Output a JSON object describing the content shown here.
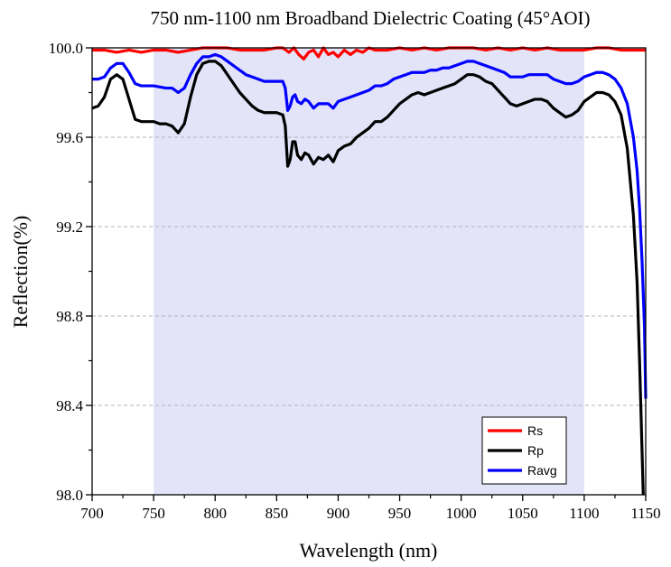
{
  "chart_data": {
    "type": "line",
    "title": "750 nm-1100 nm Broadband Dielectric Coating (45°AOI)",
    "xlabel": "Wavelength (nm)",
    "ylabel": "Reflection(%)",
    "xlim": [
      700,
      1150
    ],
    "ylim": [
      98.0,
      100.0
    ],
    "xticks": [
      "700",
      "750",
      "800",
      "850",
      "900",
      "950",
      "1000",
      "1050",
      "1100",
      "1150"
    ],
    "yticks": [
      "98.0",
      "98.4",
      "98.8",
      "99.2",
      "99.6",
      "100.0"
    ],
    "grid": "horizontal dashed",
    "legend_position": "bottom-right",
    "highlight_band": {
      "x_start": 750,
      "x_end": 1100,
      "color": "#e3e4f8"
    },
    "series": [
      {
        "name": "Rs",
        "color": "#ff0000",
        "points": [
          [
            700,
            99.99
          ],
          [
            710,
            99.99
          ],
          [
            720,
            99.98
          ],
          [
            730,
            99.99
          ],
          [
            740,
            99.98
          ],
          [
            750,
            99.99
          ],
          [
            760,
            99.99
          ],
          [
            770,
            99.98
          ],
          [
            780,
            99.99
          ],
          [
            790,
            100.0
          ],
          [
            800,
            100.0
          ],
          [
            810,
            100.0
          ],
          [
            820,
            99.99
          ],
          [
            830,
            99.99
          ],
          [
            840,
            99.99
          ],
          [
            850,
            100.0
          ],
          [
            855,
            100.0
          ],
          [
            860,
            99.98
          ],
          [
            864,
            100.0
          ],
          [
            868,
            99.97
          ],
          [
            872,
            99.95
          ],
          [
            876,
            99.98
          ],
          [
            880,
            99.99
          ],
          [
            884,
            99.96
          ],
          [
            888,
            100.0
          ],
          [
            892,
            99.97
          ],
          [
            896,
            99.98
          ],
          [
            900,
            99.96
          ],
          [
            905,
            99.99
          ],
          [
            910,
            99.97
          ],
          [
            915,
            99.99
          ],
          [
            920,
            99.98
          ],
          [
            925,
            100.0
          ],
          [
            930,
            99.99
          ],
          [
            940,
            99.99
          ],
          [
            950,
            100.0
          ],
          [
            960,
            99.99
          ],
          [
            970,
            100.0
          ],
          [
            980,
            99.99
          ],
          [
            990,
            100.0
          ],
          [
            1000,
            100.0
          ],
          [
            1010,
            100.0
          ],
          [
            1020,
            99.99
          ],
          [
            1030,
            100.0
          ],
          [
            1040,
            99.99
          ],
          [
            1050,
            100.0
          ],
          [
            1060,
            99.99
          ],
          [
            1070,
            100.0
          ],
          [
            1080,
            99.99
          ],
          [
            1090,
            99.99
          ],
          [
            1100,
            99.99
          ],
          [
            1110,
            100.0
          ],
          [
            1120,
            100.0
          ],
          [
            1130,
            99.99
          ],
          [
            1140,
            99.99
          ],
          [
            1150,
            99.99
          ]
        ]
      },
      {
        "name": "Rp",
        "color": "#000000",
        "points": [
          [
            700,
            99.73
          ],
          [
            705,
            99.74
          ],
          [
            710,
            99.78
          ],
          [
            715,
            99.86
          ],
          [
            720,
            99.88
          ],
          [
            725,
            99.86
          ],
          [
            730,
            99.77
          ],
          [
            735,
            99.68
          ],
          [
            740,
            99.67
          ],
          [
            750,
            99.67
          ],
          [
            755,
            99.66
          ],
          [
            760,
            99.66
          ],
          [
            765,
            99.65
          ],
          [
            770,
            99.62
          ],
          [
            775,
            99.66
          ],
          [
            780,
            99.78
          ],
          [
            785,
            99.88
          ],
          [
            790,
            99.93
          ],
          [
            795,
            99.94
          ],
          [
            800,
            99.94
          ],
          [
            805,
            99.92
          ],
          [
            810,
            99.88
          ],
          [
            815,
            99.84
          ],
          [
            820,
            99.8
          ],
          [
            825,
            99.77
          ],
          [
            830,
            99.74
          ],
          [
            835,
            99.72
          ],
          [
            840,
            99.71
          ],
          [
            850,
            99.71
          ],
          [
            855,
            99.7
          ],
          [
            857,
            99.65
          ],
          [
            859,
            99.47
          ],
          [
            861,
            99.5
          ],
          [
            863,
            99.58
          ],
          [
            865,
            99.58
          ],
          [
            867,
            99.52
          ],
          [
            870,
            99.5
          ],
          [
            873,
            99.53
          ],
          [
            876,
            99.52
          ],
          [
            880,
            99.48
          ],
          [
            884,
            99.51
          ],
          [
            888,
            99.5
          ],
          [
            892,
            99.52
          ],
          [
            896,
            99.49
          ],
          [
            900,
            99.54
          ],
          [
            905,
            99.56
          ],
          [
            910,
            99.57
          ],
          [
            915,
            99.6
          ],
          [
            920,
            99.62
          ],
          [
            925,
            99.64
          ],
          [
            930,
            99.67
          ],
          [
            935,
            99.67
          ],
          [
            940,
            99.69
          ],
          [
            945,
            99.72
          ],
          [
            950,
            99.75
          ],
          [
            955,
            99.77
          ],
          [
            960,
            99.79
          ],
          [
            965,
            99.8
          ],
          [
            970,
            99.79
          ],
          [
            975,
            99.8
          ],
          [
            980,
            99.81
          ],
          [
            985,
            99.82
          ],
          [
            990,
            99.83
          ],
          [
            995,
            99.84
          ],
          [
            1000,
            99.86
          ],
          [
            1005,
            99.88
          ],
          [
            1010,
            99.88
          ],
          [
            1015,
            99.87
          ],
          [
            1020,
            99.85
          ],
          [
            1025,
            99.84
          ],
          [
            1030,
            99.81
          ],
          [
            1035,
            99.78
          ],
          [
            1040,
            99.75
          ],
          [
            1045,
            99.74
          ],
          [
            1050,
            99.75
          ],
          [
            1055,
            99.76
          ],
          [
            1060,
            99.77
          ],
          [
            1065,
            99.77
          ],
          [
            1070,
            99.76
          ],
          [
            1075,
            99.73
          ],
          [
            1080,
            99.71
          ],
          [
            1085,
            99.69
          ],
          [
            1090,
            99.7
          ],
          [
            1095,
            99.72
          ],
          [
            1100,
            99.76
          ],
          [
            1105,
            99.78
          ],
          [
            1110,
            99.8
          ],
          [
            1115,
            99.8
          ],
          [
            1120,
            99.79
          ],
          [
            1125,
            99.76
          ],
          [
            1130,
            99.7
          ],
          [
            1135,
            99.55
          ],
          [
            1140,
            99.25
          ],
          [
            1143,
            98.95
          ],
          [
            1145,
            98.6
          ],
          [
            1147,
            98.2
          ],
          [
            1148,
            98.0
          ]
        ]
      },
      {
        "name": "Ravg",
        "color": "#0000ff",
        "points": [
          [
            700,
            99.86
          ],
          [
            705,
            99.86
          ],
          [
            710,
            99.87
          ],
          [
            715,
            99.91
          ],
          [
            720,
            99.93
          ],
          [
            725,
            99.93
          ],
          [
            730,
            99.89
          ],
          [
            735,
            99.84
          ],
          [
            740,
            99.83
          ],
          [
            750,
            99.83
          ],
          [
            760,
            99.82
          ],
          [
            765,
            99.82
          ],
          [
            770,
            99.8
          ],
          [
            775,
            99.82
          ],
          [
            780,
            99.88
          ],
          [
            785,
            99.93
          ],
          [
            790,
            99.96
          ],
          [
            795,
            99.96
          ],
          [
            800,
            99.97
          ],
          [
            805,
            99.96
          ],
          [
            810,
            99.94
          ],
          [
            815,
            99.92
          ],
          [
            820,
            99.9
          ],
          [
            825,
            99.88
          ],
          [
            830,
            99.87
          ],
          [
            835,
            99.86
          ],
          [
            840,
            99.85
          ],
          [
            850,
            99.85
          ],
          [
            855,
            99.85
          ],
          [
            857,
            99.82
          ],
          [
            859,
            99.72
          ],
          [
            861,
            99.74
          ],
          [
            863,
            99.78
          ],
          [
            865,
            99.79
          ],
          [
            867,
            99.76
          ],
          [
            870,
            99.75
          ],
          [
            873,
            99.77
          ],
          [
            876,
            99.76
          ],
          [
            880,
            99.73
          ],
          [
            884,
            99.75
          ],
          [
            888,
            99.75
          ],
          [
            892,
            99.75
          ],
          [
            896,
            99.73
          ],
          [
            900,
            99.76
          ],
          [
            905,
            99.77
          ],
          [
            910,
            99.78
          ],
          [
            915,
            99.79
          ],
          [
            920,
            99.8
          ],
          [
            925,
            99.81
          ],
          [
            930,
            99.83
          ],
          [
            935,
            99.83
          ],
          [
            940,
            99.84
          ],
          [
            945,
            99.86
          ],
          [
            950,
            99.87
          ],
          [
            955,
            99.88
          ],
          [
            960,
            99.89
          ],
          [
            965,
            99.89
          ],
          [
            970,
            99.89
          ],
          [
            975,
            99.9
          ],
          [
            980,
            99.9
          ],
          [
            985,
            99.91
          ],
          [
            990,
            99.91
          ],
          [
            995,
            99.92
          ],
          [
            1000,
            99.93
          ],
          [
            1005,
            99.94
          ],
          [
            1010,
            99.94
          ],
          [
            1015,
            99.93
          ],
          [
            1020,
            99.92
          ],
          [
            1025,
            99.91
          ],
          [
            1030,
            99.9
          ],
          [
            1035,
            99.89
          ],
          [
            1040,
            99.87
          ],
          [
            1045,
            99.87
          ],
          [
            1050,
            99.87
          ],
          [
            1055,
            99.88
          ],
          [
            1060,
            99.88
          ],
          [
            1065,
            99.88
          ],
          [
            1070,
            99.88
          ],
          [
            1075,
            99.86
          ],
          [
            1080,
            99.85
          ],
          [
            1085,
            99.84
          ],
          [
            1090,
            99.84
          ],
          [
            1095,
            99.85
          ],
          [
            1100,
            99.87
          ],
          [
            1105,
            99.88
          ],
          [
            1110,
            99.89
          ],
          [
            1115,
            99.89
          ],
          [
            1120,
            99.88
          ],
          [
            1125,
            99.86
          ],
          [
            1130,
            99.82
          ],
          [
            1135,
            99.75
          ],
          [
            1140,
            99.6
          ],
          [
            1143,
            99.45
          ],
          [
            1145,
            99.28
          ],
          [
            1147,
            99.05
          ],
          [
            1149,
            98.75
          ],
          [
            1150,
            98.43
          ]
        ]
      }
    ]
  }
}
